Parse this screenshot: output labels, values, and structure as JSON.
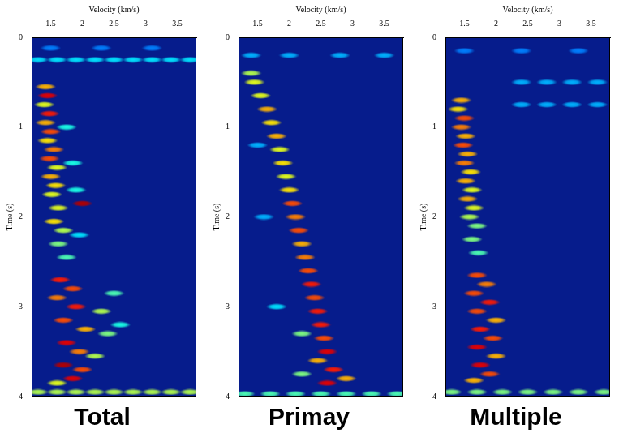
{
  "chart_data": [
    {
      "type": "scatter",
      "title": "Total",
      "x_label": "Velocity (km/s)",
      "y_label": "Time (s)",
      "xlim": [
        1.2,
        3.8
      ],
      "xticks": [
        1.5,
        2,
        2.5,
        3,
        3.5
      ],
      "ylim": [
        0,
        4
      ],
      "yticks": [
        0,
        1,
        2,
        3,
        4
      ],
      "semblance_range": [
        0,
        1
      ],
      "peaks": [
        {
          "time": 0.12,
          "velocity": 1.5,
          "semblance": 0.25
        },
        {
          "time": 0.12,
          "velocity": 2.3,
          "semblance": 0.25
        },
        {
          "time": 0.12,
          "velocity": 3.1,
          "semblance": 0.25
        },
        {
          "time": 0.25,
          "velocity": 1.3,
          "semblance": 0.35
        },
        {
          "time": 0.25,
          "velocity": 1.6,
          "semblance": 0.35
        },
        {
          "time": 0.25,
          "velocity": 1.9,
          "semblance": 0.35
        },
        {
          "time": 0.25,
          "velocity": 2.2,
          "semblance": 0.35
        },
        {
          "time": 0.25,
          "velocity": 2.5,
          "semblance": 0.35
        },
        {
          "time": 0.25,
          "velocity": 2.8,
          "semblance": 0.35
        },
        {
          "time": 0.25,
          "velocity": 3.1,
          "semblance": 0.35
        },
        {
          "time": 0.25,
          "velocity": 3.4,
          "semblance": 0.35
        },
        {
          "time": 0.25,
          "velocity": 3.7,
          "semblance": 0.35
        },
        {
          "time": 1.0,
          "velocity": 1.75,
          "semblance": 0.4
        },
        {
          "time": 1.4,
          "velocity": 1.85,
          "semblance": 0.4
        },
        {
          "time": 1.7,
          "velocity": 1.9,
          "semblance": 0.4
        },
        {
          "time": 2.2,
          "velocity": 1.95,
          "semblance": 0.35
        },
        {
          "time": 2.85,
          "velocity": 2.5,
          "semblance": 0.45
        },
        {
          "time": 3.2,
          "velocity": 2.6,
          "semblance": 0.4
        },
        {
          "time": 0.55,
          "velocity": 1.42,
          "semblance": 0.7
        },
        {
          "time": 0.65,
          "velocity": 1.45,
          "semblance": 0.9
        },
        {
          "time": 0.75,
          "velocity": 1.4,
          "semblance": 0.6
        },
        {
          "time": 0.85,
          "velocity": 1.48,
          "semblance": 0.85
        },
        {
          "time": 0.95,
          "velocity": 1.42,
          "semblance": 0.7
        },
        {
          "time": 1.05,
          "velocity": 1.5,
          "semblance": 0.8
        },
        {
          "time": 1.15,
          "velocity": 1.45,
          "semblance": 0.65
        },
        {
          "time": 1.25,
          "velocity": 1.55,
          "semblance": 0.75
        },
        {
          "time": 1.35,
          "velocity": 1.48,
          "semblance": 0.8
        },
        {
          "time": 1.45,
          "velocity": 1.6,
          "semblance": 0.6
        },
        {
          "time": 1.55,
          "velocity": 1.5,
          "semblance": 0.7
        },
        {
          "time": 1.65,
          "velocity": 1.58,
          "semblance": 0.65
        },
        {
          "time": 1.75,
          "velocity": 1.52,
          "semblance": 0.6
        },
        {
          "time": 1.85,
          "velocity": 2.0,
          "semblance": 0.95
        },
        {
          "time": 1.9,
          "velocity": 1.62,
          "semblance": 0.6
        },
        {
          "time": 2.05,
          "velocity": 1.55,
          "semblance": 0.65
        },
        {
          "time": 2.15,
          "velocity": 1.7,
          "semblance": 0.55
        },
        {
          "time": 2.3,
          "velocity": 1.62,
          "semblance": 0.5
        },
        {
          "time": 2.45,
          "velocity": 1.75,
          "semblance": 0.45
        },
        {
          "time": 2.7,
          "velocity": 1.65,
          "semblance": 0.85
        },
        {
          "time": 2.8,
          "velocity": 1.85,
          "semblance": 0.8
        },
        {
          "time": 2.9,
          "velocity": 1.6,
          "semblance": 0.75
        },
        {
          "time": 3.0,
          "velocity": 1.9,
          "semblance": 0.85
        },
        {
          "time": 3.05,
          "velocity": 2.3,
          "semblance": 0.55
        },
        {
          "time": 3.15,
          "velocity": 1.7,
          "semblance": 0.8
        },
        {
          "time": 3.25,
          "velocity": 2.05,
          "semblance": 0.7
        },
        {
          "time": 3.3,
          "velocity": 2.4,
          "semblance": 0.5
        },
        {
          "time": 3.4,
          "velocity": 1.75,
          "semblance": 0.9
        },
        {
          "time": 3.5,
          "velocity": 1.95,
          "semblance": 0.75
        },
        {
          "time": 3.55,
          "velocity": 2.2,
          "semblance": 0.55
        },
        {
          "time": 3.65,
          "velocity": 1.7,
          "semblance": 0.95
        },
        {
          "time": 3.7,
          "velocity": 2.0,
          "semblance": 0.8
        },
        {
          "time": 3.8,
          "velocity": 1.85,
          "semblance": 0.9
        },
        {
          "time": 3.85,
          "velocity": 1.6,
          "semblance": 0.6
        },
        {
          "time": 3.95,
          "velocity": 1.3,
          "semblance": 0.55
        },
        {
          "time": 3.95,
          "velocity": 1.6,
          "semblance": 0.55
        },
        {
          "time": 3.95,
          "velocity": 1.9,
          "semblance": 0.55
        },
        {
          "time": 3.95,
          "velocity": 2.2,
          "semblance": 0.55
        },
        {
          "time": 3.95,
          "velocity": 2.5,
          "semblance": 0.55
        },
        {
          "time": 3.95,
          "velocity": 2.8,
          "semblance": 0.55
        },
        {
          "time": 3.95,
          "velocity": 3.1,
          "semblance": 0.55
        },
        {
          "time": 3.95,
          "velocity": 3.4,
          "semblance": 0.55
        },
        {
          "time": 3.95,
          "velocity": 3.7,
          "semblance": 0.55
        }
      ]
    },
    {
      "type": "scatter",
      "title": "Primay",
      "x_label": "Velocity (km/s)",
      "y_label": "Time (s)",
      "xlim": [
        1.2,
        3.8
      ],
      "xticks": [
        1.5,
        2,
        2.5,
        3,
        3.5
      ],
      "ylim": [
        0,
        4
      ],
      "yticks": [
        0,
        1,
        2,
        3,
        4
      ],
      "semblance_range": [
        0,
        1
      ],
      "peaks": [
        {
          "time": 0.2,
          "velocity": 1.4,
          "semblance": 0.3
        },
        {
          "time": 0.2,
          "velocity": 2.0,
          "semblance": 0.3
        },
        {
          "time": 0.2,
          "velocity": 2.8,
          "semblance": 0.3
        },
        {
          "time": 0.2,
          "velocity": 3.5,
          "semblance": 0.3
        },
        {
          "time": 1.2,
          "velocity": 1.5,
          "semblance": 0.3
        },
        {
          "time": 2.0,
          "velocity": 1.6,
          "semblance": 0.3
        },
        {
          "time": 3.0,
          "velocity": 1.8,
          "semblance": 0.35
        },
        {
          "time": 3.75,
          "velocity": 2.2,
          "semblance": 0.5
        },
        {
          "time": 3.3,
          "velocity": 2.2,
          "semblance": 0.5
        },
        {
          "time": 0.4,
          "velocity": 1.4,
          "semblance": 0.55
        },
        {
          "time": 0.5,
          "velocity": 1.45,
          "semblance": 0.6
        },
        {
          "time": 0.65,
          "velocity": 1.55,
          "semblance": 0.6
        },
        {
          "time": 0.8,
          "velocity": 1.65,
          "semblance": 0.7
        },
        {
          "time": 0.95,
          "velocity": 1.72,
          "semblance": 0.65
        },
        {
          "time": 1.1,
          "velocity": 1.8,
          "semblance": 0.7
        },
        {
          "time": 1.25,
          "velocity": 1.85,
          "semblance": 0.6
        },
        {
          "time": 1.4,
          "velocity": 1.9,
          "semblance": 0.65
        },
        {
          "time": 1.55,
          "velocity": 1.95,
          "semblance": 0.6
        },
        {
          "time": 1.7,
          "velocity": 2.0,
          "semblance": 0.65
        },
        {
          "time": 1.85,
          "velocity": 2.05,
          "semblance": 0.8
        },
        {
          "time": 2.0,
          "velocity": 2.1,
          "semblance": 0.75
        },
        {
          "time": 2.15,
          "velocity": 2.15,
          "semblance": 0.8
        },
        {
          "time": 2.3,
          "velocity": 2.2,
          "semblance": 0.7
        },
        {
          "time": 2.45,
          "velocity": 2.25,
          "semblance": 0.75
        },
        {
          "time": 2.6,
          "velocity": 2.3,
          "semblance": 0.8
        },
        {
          "time": 2.75,
          "velocity": 2.35,
          "semblance": 0.85
        },
        {
          "time": 2.9,
          "velocity": 2.4,
          "semblance": 0.8
        },
        {
          "time": 3.05,
          "velocity": 2.45,
          "semblance": 0.85
        },
        {
          "time": 3.2,
          "velocity": 2.5,
          "semblance": 0.85
        },
        {
          "time": 3.35,
          "velocity": 2.55,
          "semblance": 0.8
        },
        {
          "time": 3.5,
          "velocity": 2.6,
          "semblance": 0.9
        },
        {
          "time": 3.6,
          "velocity": 2.45,
          "semblance": 0.7
        },
        {
          "time": 3.7,
          "velocity": 2.7,
          "semblance": 0.85
        },
        {
          "time": 3.8,
          "velocity": 2.9,
          "semblance": 0.7
        },
        {
          "time": 3.85,
          "velocity": 2.6,
          "semblance": 0.9
        },
        {
          "time": 3.97,
          "velocity": 1.3,
          "semblance": 0.45
        },
        {
          "time": 3.97,
          "velocity": 1.7,
          "semblance": 0.45
        },
        {
          "time": 3.97,
          "velocity": 2.1,
          "semblance": 0.45
        },
        {
          "time": 3.97,
          "velocity": 2.5,
          "semblance": 0.45
        },
        {
          "time": 3.97,
          "velocity": 2.9,
          "semblance": 0.45
        },
        {
          "time": 3.97,
          "velocity": 3.3,
          "semblance": 0.45
        },
        {
          "time": 3.97,
          "velocity": 3.7,
          "semblance": 0.45
        }
      ]
    },
    {
      "type": "scatter",
      "title": "Multiple",
      "x_label": "Velocity (km/s)",
      "y_label": "Time (s)",
      "xlim": [
        1.2,
        3.8
      ],
      "xticks": [
        1.5,
        2,
        2.5,
        3,
        3.5
      ],
      "ylim": [
        0,
        4
      ],
      "yticks": [
        0,
        1,
        2,
        3,
        4
      ],
      "semblance_range": [
        0,
        1
      ],
      "peaks": [
        {
          "time": 0.15,
          "velocity": 1.5,
          "semblance": 0.25
        },
        {
          "time": 0.15,
          "velocity": 2.4,
          "semblance": 0.25
        },
        {
          "time": 0.15,
          "velocity": 3.3,
          "semblance": 0.25
        },
        {
          "time": 0.5,
          "velocity": 2.4,
          "semblance": 0.3
        },
        {
          "time": 0.5,
          "velocity": 2.8,
          "semblance": 0.3
        },
        {
          "time": 0.5,
          "velocity": 3.2,
          "semblance": 0.3
        },
        {
          "time": 0.5,
          "velocity": 3.6,
          "semblance": 0.3
        },
        {
          "time": 0.75,
          "velocity": 2.4,
          "semblance": 0.3
        },
        {
          "time": 0.75,
          "velocity": 2.8,
          "semblance": 0.3
        },
        {
          "time": 0.75,
          "velocity": 3.2,
          "semblance": 0.3
        },
        {
          "time": 0.75,
          "velocity": 3.6,
          "semblance": 0.3
        },
        {
          "time": 0.7,
          "velocity": 1.45,
          "semblance": 0.7
        },
        {
          "time": 0.8,
          "velocity": 1.4,
          "semblance": 0.65
        },
        {
          "time": 0.9,
          "velocity": 1.5,
          "semblance": 0.8
        },
        {
          "time": 1.0,
          "velocity": 1.45,
          "semblance": 0.75
        },
        {
          "time": 1.1,
          "velocity": 1.52,
          "semblance": 0.7
        },
        {
          "time": 1.2,
          "velocity": 1.48,
          "semblance": 0.8
        },
        {
          "time": 1.3,
          "velocity": 1.55,
          "semblance": 0.7
        },
        {
          "time": 1.4,
          "velocity": 1.5,
          "semblance": 0.75
        },
        {
          "time": 1.5,
          "velocity": 1.6,
          "semblance": 0.65
        },
        {
          "time": 1.6,
          "velocity": 1.52,
          "semblance": 0.7
        },
        {
          "time": 1.7,
          "velocity": 1.62,
          "semblance": 0.6
        },
        {
          "time": 1.8,
          "velocity": 1.55,
          "semblance": 0.7
        },
        {
          "time": 1.9,
          "velocity": 1.65,
          "semblance": 0.6
        },
        {
          "time": 2.0,
          "velocity": 1.58,
          "semblance": 0.55
        },
        {
          "time": 2.1,
          "velocity": 1.7,
          "semblance": 0.5
        },
        {
          "time": 2.25,
          "velocity": 1.62,
          "semblance": 0.5
        },
        {
          "time": 2.4,
          "velocity": 1.72,
          "semblance": 0.45
        },
        {
          "time": 2.65,
          "velocity": 1.7,
          "semblance": 0.8
        },
        {
          "time": 2.75,
          "velocity": 1.85,
          "semblance": 0.75
        },
        {
          "time": 2.85,
          "velocity": 1.65,
          "semblance": 0.8
        },
        {
          "time": 2.95,
          "velocity": 1.9,
          "semblance": 0.85
        },
        {
          "time": 3.05,
          "velocity": 1.7,
          "semblance": 0.8
        },
        {
          "time": 3.15,
          "velocity": 2.0,
          "semblance": 0.7
        },
        {
          "time": 3.25,
          "velocity": 1.75,
          "semblance": 0.85
        },
        {
          "time": 3.35,
          "velocity": 1.95,
          "semblance": 0.8
        },
        {
          "time": 3.45,
          "velocity": 1.7,
          "semblance": 0.9
        },
        {
          "time": 3.55,
          "velocity": 2.0,
          "semblance": 0.7
        },
        {
          "time": 3.65,
          "velocity": 1.75,
          "semblance": 0.9
        },
        {
          "time": 3.75,
          "velocity": 1.9,
          "semblance": 0.8
        },
        {
          "time": 3.82,
          "velocity": 1.65,
          "semblance": 0.7
        },
        {
          "time": 3.95,
          "velocity": 1.3,
          "semblance": 0.5
        },
        {
          "time": 3.95,
          "velocity": 1.7,
          "semblance": 0.5
        },
        {
          "time": 3.95,
          "velocity": 2.1,
          "semblance": 0.5
        },
        {
          "time": 3.95,
          "velocity": 2.5,
          "semblance": 0.5
        },
        {
          "time": 3.95,
          "velocity": 2.9,
          "semblance": 0.5
        },
        {
          "time": 3.95,
          "velocity": 3.3,
          "semblance": 0.5
        },
        {
          "time": 3.95,
          "velocity": 3.7,
          "semblance": 0.5
        }
      ]
    }
  ]
}
